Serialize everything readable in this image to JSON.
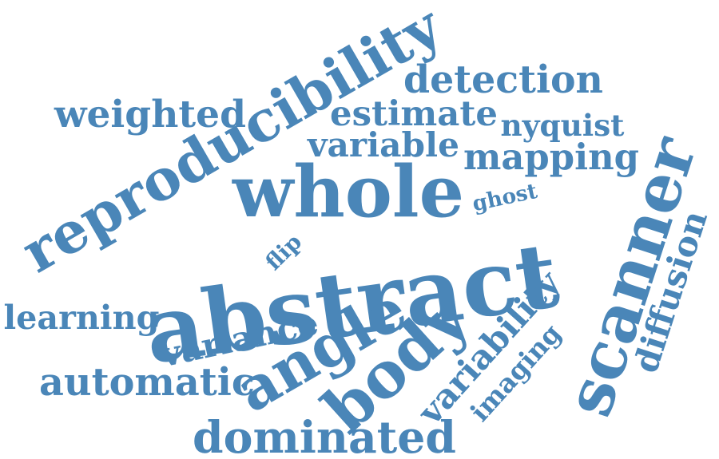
{
  "color": "#4a86b8",
  "words": [
    {
      "text": "abstract",
      "weight": 1.0
    },
    {
      "text": "reproducibility",
      "weight": 0.82
    },
    {
      "text": "whole",
      "weight": 0.78
    },
    {
      "text": "scanner",
      "weight": 0.76
    },
    {
      "text": "body",
      "weight": 0.7
    },
    {
      "text": "angle",
      "weight": 0.6
    },
    {
      "text": "dominated",
      "weight": 0.56
    },
    {
      "text": "automatic",
      "weight": 0.5
    },
    {
      "text": "detection",
      "weight": 0.5
    },
    {
      "text": "mapping",
      "weight": 0.5
    },
    {
      "text": "estimate",
      "weight": 0.46
    },
    {
      "text": "weighted",
      "weight": 0.46
    },
    {
      "text": "diffusion",
      "weight": 0.44
    },
    {
      "text": "variability",
      "weight": 0.44
    },
    {
      "text": "variable",
      "weight": 0.4
    },
    {
      "text": "variance",
      "weight": 0.4
    },
    {
      "text": "learning",
      "weight": 0.38
    },
    {
      "text": "nyquist",
      "weight": 0.36
    },
    {
      "text": "imaging",
      "weight": 0.34
    },
    {
      "text": "flip",
      "weight": 0.24
    },
    {
      "text": "ghost",
      "weight": 0.22
    }
  ]
}
